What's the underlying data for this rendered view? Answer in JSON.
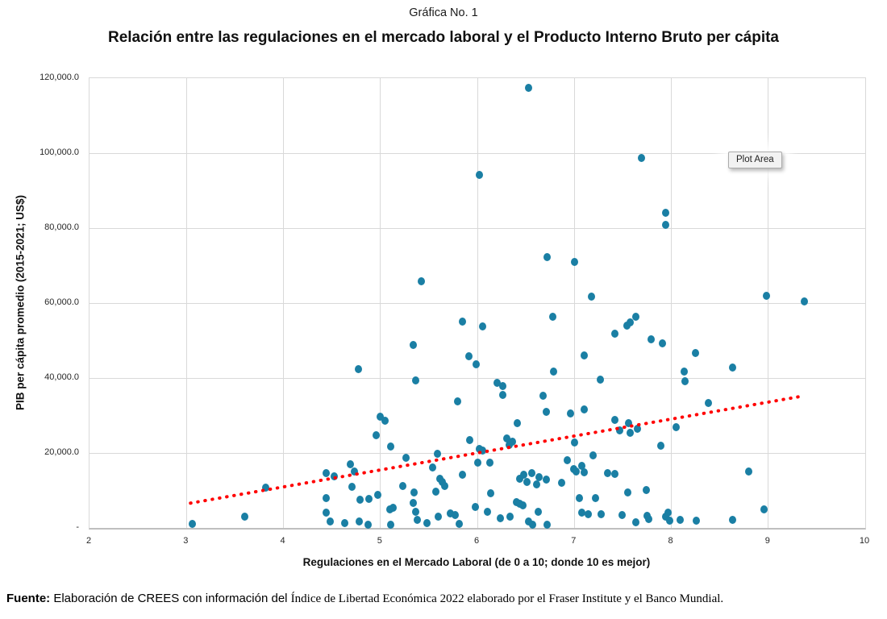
{
  "page": {
    "chart_label": "Gráfica No. 1",
    "title": "Relación entre las regulaciones en el mercado laboral y el Producto Interno Bruto per cápita",
    "plot_area_tooltip": "Plot Area",
    "footer": {
      "prefix_bold": "Fuente:",
      "sans_part": " Elaboración de CREES con información del ",
      "serif_part": "Índice de Libertad Económica 2022 elaborado por el Fraser Institute y el Banco Mundial."
    }
  },
  "chart_data": {
    "type": "scatter",
    "title": "Relación entre las regulaciones en el mercado laboral y el Producto Interno Bruto per cápita",
    "xlabel": "Regulaciones en el Mercado Laboral (de 0 a 10; donde 10 es mejor)",
    "ylabel": "PIB per cápita promedio (2015-2021; US$)",
    "xlim": [
      2,
      10
    ],
    "ylim": [
      0,
      120000
    ],
    "grid": true,
    "legend": "none",
    "x_ticks": [
      2,
      3,
      4,
      5,
      6,
      7,
      8,
      9,
      10
    ],
    "y_tick_values": [
      0,
      20000,
      40000,
      60000,
      80000,
      100000,
      120000
    ],
    "y_tick_labels": [
      "-",
      "20,000.0",
      "40,000.0",
      "60,000.0",
      "80,000.0",
      "100,000.0",
      "120,000.0"
    ],
    "point_color": "#1a7fa4",
    "grid_color": "#d9d9d9",
    "trendline": {
      "style": "dotted",
      "color": "#ff0000",
      "x_start": 3.05,
      "y_start": 6400,
      "x_end": 9.35,
      "y_end": 34900
    },
    "points": [
      [
        3.06,
        1000
      ],
      [
        3.6,
        3100
      ],
      [
        3.82,
        10800
      ],
      [
        4.44,
        14600
      ],
      [
        4.52,
        13800
      ],
      [
        4.69,
        17000
      ],
      [
        4.73,
        15100
      ],
      [
        4.44,
        8000
      ],
      [
        4.44,
        4100
      ],
      [
        4.48,
        1700
      ],
      [
        4.63,
        1300
      ],
      [
        4.71,
        11000
      ],
      [
        4.77,
        42400
      ],
      [
        4.79,
        7500
      ],
      [
        4.78,
        1700
      ],
      [
        4.87,
        900
      ],
      [
        4.88,
        7700
      ],
      [
        4.96,
        24700
      ],
      [
        4.97,
        8800
      ],
      [
        5.0,
        29700
      ],
      [
        5.05,
        28600
      ],
      [
        5.1,
        4900
      ],
      [
        5.11,
        21700
      ],
      [
        5.11,
        900
      ],
      [
        5.13,
        5400
      ],
      [
        5.23,
        11200
      ],
      [
        5.26,
        18700
      ],
      [
        5.34,
        48800
      ],
      [
        5.34,
        6700
      ],
      [
        5.35,
        9500
      ],
      [
        5.36,
        39400
      ],
      [
        5.36,
        4300
      ],
      [
        5.38,
        2100
      ],
      [
        5.42,
        65800
      ],
      [
        5.48,
        1200
      ],
      [
        5.54,
        16100
      ],
      [
        5.57,
        9700
      ],
      [
        5.59,
        19800
      ],
      [
        5.6,
        3000
      ],
      [
        5.61,
        13100
      ],
      [
        5.64,
        12300
      ],
      [
        5.66,
        11200
      ],
      [
        5.72,
        3800
      ],
      [
        5.77,
        3400
      ],
      [
        5.8,
        33800
      ],
      [
        5.81,
        1100
      ],
      [
        5.85,
        55000
      ],
      [
        5.85,
        14200
      ],
      [
        5.91,
        45800
      ],
      [
        5.92,
        23400
      ],
      [
        5.98,
        5600
      ],
      [
        5.99,
        43700
      ],
      [
        6.0,
        17500
      ],
      [
        6.02,
        94300
      ],
      [
        6.02,
        21100
      ],
      [
        6.05,
        53700
      ],
      [
        6.05,
        20600
      ],
      [
        6.1,
        4300
      ],
      [
        6.13,
        17400
      ],
      [
        6.14,
        9300
      ],
      [
        6.2,
        38700
      ],
      [
        6.24,
        2600
      ],
      [
        6.26,
        37900
      ],
      [
        6.26,
        35500
      ],
      [
        6.3,
        23900
      ],
      [
        6.33,
        22200
      ],
      [
        6.34,
        3100
      ],
      [
        6.36,
        23000
      ],
      [
        6.4,
        6900
      ],
      [
        6.41,
        28000
      ],
      [
        6.44,
        6400
      ],
      [
        6.44,
        13100
      ],
      [
        6.47,
        6000
      ],
      [
        6.48,
        14200
      ],
      [
        6.51,
        12300
      ],
      [
        6.53,
        117500
      ],
      [
        6.53,
        1700
      ],
      [
        6.56,
        14600
      ],
      [
        6.57,
        900
      ],
      [
        6.61,
        11600
      ],
      [
        6.63,
        4300
      ],
      [
        6.64,
        13500
      ],
      [
        6.68,
        35300
      ],
      [
        6.71,
        31000
      ],
      [
        6.71,
        12900
      ],
      [
        6.72,
        72200
      ],
      [
        6.72,
        900
      ],
      [
        6.78,
        56400
      ],
      [
        6.79,
        41700
      ],
      [
        6.87,
        12000
      ],
      [
        6.93,
        18000
      ],
      [
        6.96,
        30600
      ],
      [
        6.99,
        15700
      ],
      [
        7.0,
        71000
      ],
      [
        7.0,
        22800
      ],
      [
        7.02,
        15100
      ],
      [
        7.05,
        8000
      ],
      [
        7.08,
        16600
      ],
      [
        7.08,
        4100
      ],
      [
        7.1,
        46000
      ],
      [
        7.1,
        31600
      ],
      [
        7.1,
        14800
      ],
      [
        7.14,
        3700
      ],
      [
        7.18,
        61800
      ],
      [
        7.19,
        19300
      ],
      [
        7.22,
        8000
      ],
      [
        7.27,
        39600
      ],
      [
        7.28,
        3700
      ],
      [
        7.34,
        14600
      ],
      [
        7.42,
        51800
      ],
      [
        7.42,
        28800
      ],
      [
        7.42,
        14400
      ],
      [
        7.47,
        26000
      ],
      [
        7.49,
        3400
      ],
      [
        7.54,
        54000
      ],
      [
        7.55,
        9500
      ],
      [
        7.56,
        28000
      ],
      [
        7.58,
        54800
      ],
      [
        7.58,
        25400
      ],
      [
        7.63,
        56400
      ],
      [
        7.63,
        1500
      ],
      [
        7.65,
        26500
      ],
      [
        7.69,
        98700
      ],
      [
        7.74,
        10100
      ],
      [
        7.75,
        3200
      ],
      [
        7.77,
        2400
      ],
      [
        7.79,
        50300
      ],
      [
        7.89,
        21900
      ],
      [
        7.91,
        49200
      ],
      [
        7.94,
        84100
      ],
      [
        7.94,
        80800
      ],
      [
        7.94,
        3000
      ],
      [
        7.97,
        4100
      ],
      [
        7.98,
        1900
      ],
      [
        8.05,
        26900
      ],
      [
        8.09,
        2100
      ],
      [
        8.13,
        41700
      ],
      [
        8.14,
        39200
      ],
      [
        8.25,
        46700
      ],
      [
        8.26,
        1900
      ],
      [
        8.38,
        33300
      ],
      [
        8.63,
        42800
      ],
      [
        8.63,
        2100
      ],
      [
        8.8,
        15000
      ],
      [
        8.96,
        4900
      ],
      [
        8.98,
        61900
      ],
      [
        9.37,
        60500
      ]
    ]
  }
}
